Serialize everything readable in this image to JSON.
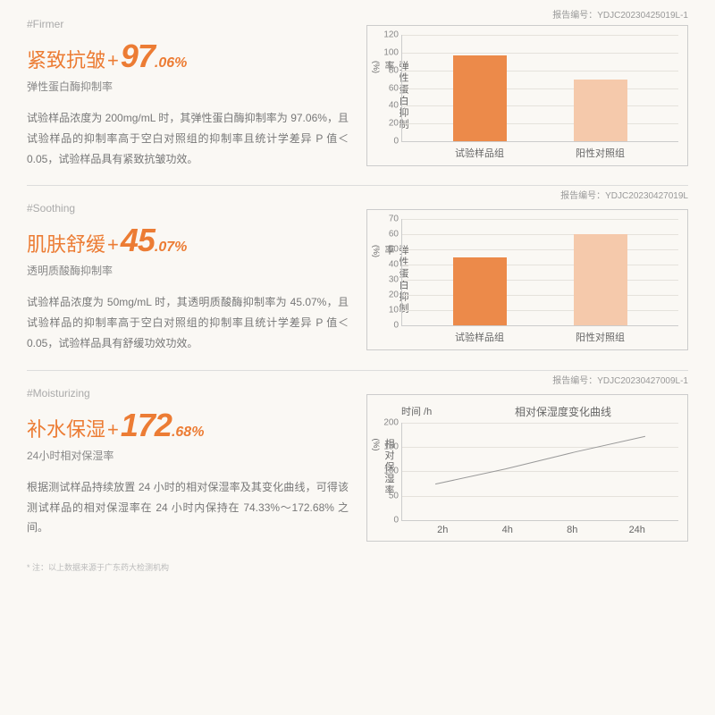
{
  "sections": [
    {
      "tag": "#Firmer",
      "report": "报告编号：YDJC20230425019L-1",
      "headline_text": "紧致抗皱",
      "headline_big": "97",
      "headline_small": ".06%",
      "subtitle": "弹性蛋白酶抑制率",
      "body": "试验样品浓度为 200mg/mL 时，其弹性蛋白酶抑制率为 97.06%，且试验样品的抑制率高于空白对照组的抑制率且统计学差异 P 值＜0.05，试验样品具有紧致抗皱功效。",
      "chart": {
        "type": "bar",
        "ylabel": "弹性蛋白抑制率",
        "yunit": "(%)",
        "ymin": 0,
        "ymax": 120,
        "ystep": 20,
        "categories": [
          "试验样品组",
          "阳性对照组"
        ],
        "values": [
          97,
          70
        ],
        "colors": [
          "#ec8a4a",
          "#f5c9ab"
        ],
        "grid_color": "#e5e2dc",
        "axis_color": "#ccc"
      }
    },
    {
      "tag": "#Soothing",
      "report": "报告编号：YDJC20230427019L",
      "headline_text": "肌肤舒缓",
      "headline_big": "45",
      "headline_small": ".07%",
      "subtitle": "透明质酸酶抑制率",
      "body": "试验样品浓度为 50mg/mL 时，其透明质酸酶抑制率为 45.07%，且试验样品的抑制率高于空白对照组的抑制率且统计学差异 P 值＜0.05，试验样品具有舒缓功效功效。",
      "chart": {
        "type": "bar",
        "ylabel": "弹性蛋白抑制率",
        "yunit": "(%)",
        "ymin": 0,
        "ymax": 70,
        "ystep": 10,
        "categories": [
          "试验样品组",
          "阳性对照组"
        ],
        "values": [
          45,
          60
        ],
        "colors": [
          "#ec8a4a",
          "#f5c9ab"
        ],
        "grid_color": "#e5e2dc",
        "axis_color": "#ccc"
      }
    },
    {
      "tag": "#Moisturizing",
      "report": "报告编号：YDJC20230427009L-1",
      "headline_text": "补水保湿",
      "headline_big": "172",
      "headline_small": ".68%",
      "subtitle": "24小时相对保湿率",
      "body": "根据测试样品持续放置 24 小时的相对保湿率及其变化曲线，可得该测试样品的相对保湿率在 24 小时内保持在 74.33%～172.68% 之间。",
      "chart": {
        "type": "line",
        "time_label": "时间 /h",
        "title": "相对保湿度变化曲线",
        "ylabel": "相对保湿率",
        "yunit": "(%)",
        "ymin": 0,
        "ymax": 200,
        "ystep": 50,
        "x_labels": [
          "2h",
          "4h",
          "8h",
          "24h"
        ],
        "points": [
          [
            0,
            74
          ],
          [
            1,
            105
          ],
          [
            2,
            140
          ],
          [
            3,
            172
          ]
        ],
        "line_color": "#999",
        "grid_color": "#e5e2dc",
        "axis_color": "#ccc"
      }
    }
  ],
  "footnote": "* 注：以上数据来源于广东药大检测机构",
  "accent_color": "#ec7c34",
  "background_color": "#faf8f4"
}
